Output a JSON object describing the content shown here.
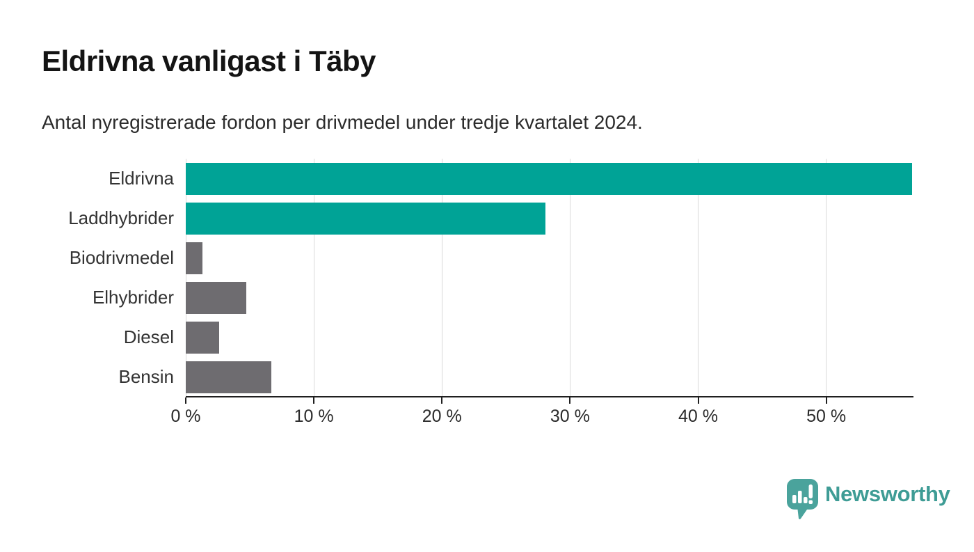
{
  "title": "Eldrivna vanligast i Täby",
  "subtitle": "Antal nyregistrerade fordon per drivmedel under tredje kvartalet 2024.",
  "chart_data": {
    "type": "bar",
    "orientation": "horizontal",
    "title": "Eldrivna vanligast i Täby",
    "subtitle": "Antal nyregistrerade fordon per drivmedel under tredje kvartalet 2024.",
    "categories": [
      "Eldrivna",
      "Laddhybrider",
      "Biodrivmedel",
      "Elhybrider",
      "Diesel",
      "Bensin"
    ],
    "values": [
      56.7,
      28.1,
      1.3,
      4.7,
      2.6,
      6.7
    ],
    "unit": "%",
    "bar_colors": [
      "#00a396",
      "#00a396",
      "#6e6c70",
      "#6e6c70",
      "#6e6c70",
      "#6e6c70"
    ],
    "highlight_color": "#00a396",
    "default_color": "#6e6c70",
    "xlabel": "",
    "ylabel": "",
    "xlim": [
      0,
      56.7
    ],
    "x_ticks": [
      0,
      10,
      20,
      30,
      40,
      50
    ],
    "x_tick_labels": [
      "0 %",
      "10 %",
      "20 %",
      "30 %",
      "40 %",
      "50 %"
    ],
    "grid": "vertical",
    "gridline_color": "#d9d9d9",
    "axis_color": "#1f1f1f",
    "legend": "none"
  },
  "branding": {
    "logo_text": "Newsworthy",
    "logo_icon": "newsworthy-bar-chart-bubble-icon",
    "logo_color": "#3e9c95",
    "logo_icon_color": "#4aa39c"
  }
}
